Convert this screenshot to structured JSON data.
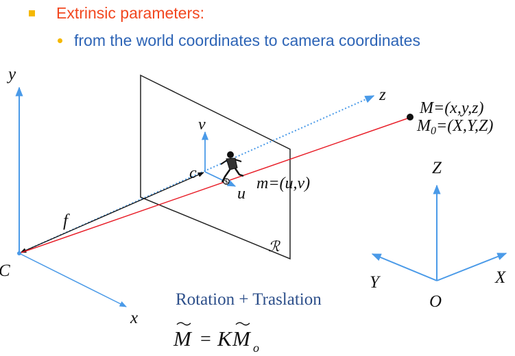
{
  "header": {
    "bullet1_text": "Extrinsic parameters:",
    "bullet2_text": "from the world coordinates to camera coordinates"
  },
  "camera_axes": {
    "y_label": "y",
    "x_label": "x",
    "z_label": "z",
    "origin_label": "C"
  },
  "image_plane": {
    "v_label": "v",
    "u_label": "u",
    "c_label": "c",
    "f_label": "f",
    "r_label": "ℛ",
    "m_label": "m=(u,v)"
  },
  "point": {
    "m_cam": "M=(x,y,z)",
    "m_world": "M0=(X,Y,Z)"
  },
  "world_axes": {
    "z_label": "Z",
    "x_label": "X",
    "y_label": "Y",
    "origin_label": "O"
  },
  "caption": "Rotation + Traslation",
  "equation": {
    "lhs": "M",
    "eq": "=",
    "k": "K",
    "rhs": "M",
    "sub": "o"
  },
  "colors": {
    "axis": "#4a9ae8",
    "ray": "#e8202a",
    "plane": "#222222",
    "title": "#f2471f",
    "subtitle": "#2d64b6",
    "bullet": "#f5b800"
  }
}
